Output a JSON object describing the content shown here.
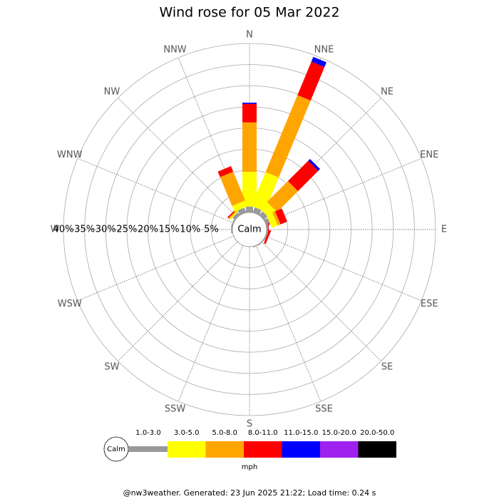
{
  "chart_data": {
    "type": "windrose",
    "title": "Wind rose for 05 Mar 2022",
    "directions": [
      "N",
      "NNE",
      "NE",
      "ENE",
      "E",
      "ESE",
      "SE",
      "SSE",
      "S",
      "SSW",
      "SW",
      "WSW",
      "W",
      "WNW",
      "NW",
      "NNW"
    ],
    "calm_label": "Calm",
    "rlim": [
      0,
      40
    ],
    "rticks": [
      {
        "value": 5,
        "label": "5%"
      },
      {
        "value": 10,
        "label": "10%"
      },
      {
        "value": 15,
        "label": "15%"
      },
      {
        "value": 20,
        "label": "20%"
      },
      {
        "value": 25,
        "label": "25%"
      },
      {
        "value": 30,
        "label": "30%"
      },
      {
        "value": 35,
        "label": "35%"
      },
      {
        "value": 40,
        "label": "40%"
      }
    ],
    "series": [
      {
        "name": "1.0-3.0",
        "color": "#999999",
        "values": [
          1.4,
          1.3,
          1.2,
          1.0,
          0.3,
          0.3,
          0.2,
          0.2,
          0,
          0,
          0,
          0,
          0.3,
          0.3,
          0.8,
          1.2
        ]
      },
      {
        "name": "3.0-5.0",
        "color": "#ffff00",
        "values": [
          8.2,
          8.7,
          2.3,
          1.5,
          0,
          0,
          0,
          0,
          0,
          0,
          0,
          0,
          0,
          0,
          0.3,
          1.5
        ]
      },
      {
        "name": "5.0-8.0",
        "color": "#ffa500",
        "values": [
          11.7,
          19.7,
          7.0,
          0.7,
          0,
          0,
          0,
          0,
          0,
          0,
          0,
          0,
          0,
          0,
          0.3,
          7.4
        ]
      },
      {
        "name": "8.0-11.0",
        "color": "#ff0000",
        "values": [
          4.4,
          8.6,
          6.8,
          1.7,
          0.2,
          0.5,
          0,
          0,
          0,
          0,
          0,
          0,
          0,
          0,
          0.3,
          1.4
        ]
      },
      {
        "name": "11.0-15.0",
        "color": "#0000ff",
        "values": [
          0.3,
          1.2,
          0.6,
          0,
          0,
          0,
          0,
          0,
          0,
          0,
          0,
          0,
          0,
          0,
          0,
          0
        ]
      },
      {
        "name": "15.0-20.0",
        "color": "#a020f0",
        "values": [
          0,
          0,
          0,
          0,
          0,
          0,
          0,
          0,
          0,
          0,
          0,
          0,
          0,
          0,
          0,
          0
        ]
      },
      {
        "name": "20.0-50.0",
        "color": "#000000",
        "values": [
          0,
          0,
          0,
          0,
          0,
          0,
          0,
          0,
          0,
          0,
          0,
          0,
          0,
          0,
          0,
          0
        ]
      }
    ],
    "unit": "mph",
    "footer": "@nw3weather. Generated: 23 Jun 2025 21:22; Load time: 0.24 s"
  }
}
